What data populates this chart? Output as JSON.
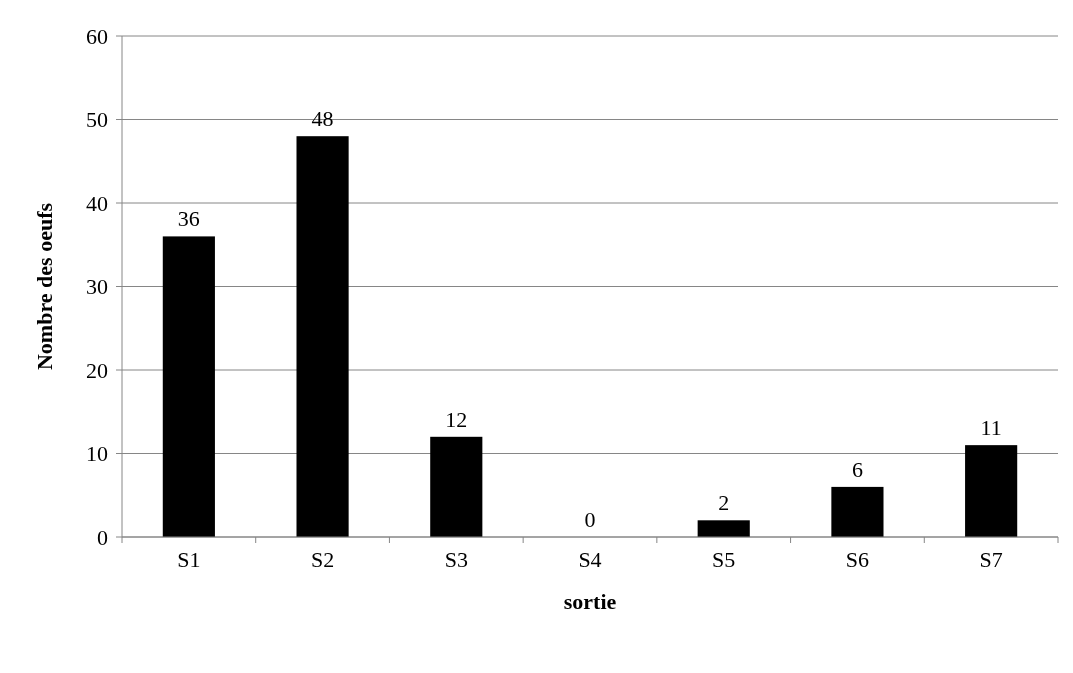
{
  "chart_data": {
    "type": "bar",
    "xlabel": "sortie",
    "ylabel": "Nombre des oeufs",
    "categories": [
      "S1",
      "S2",
      "S3",
      "S4",
      "S5",
      "S6",
      "S7"
    ],
    "values": [
      36,
      48,
      12,
      0,
      2,
      6,
      11
    ],
    "color": "#000000",
    "ylim": [
      0,
      60
    ],
    "yticks": [
      0,
      10,
      20,
      30,
      40,
      50,
      60
    ],
    "grid": "y",
    "data_labels": true
  }
}
